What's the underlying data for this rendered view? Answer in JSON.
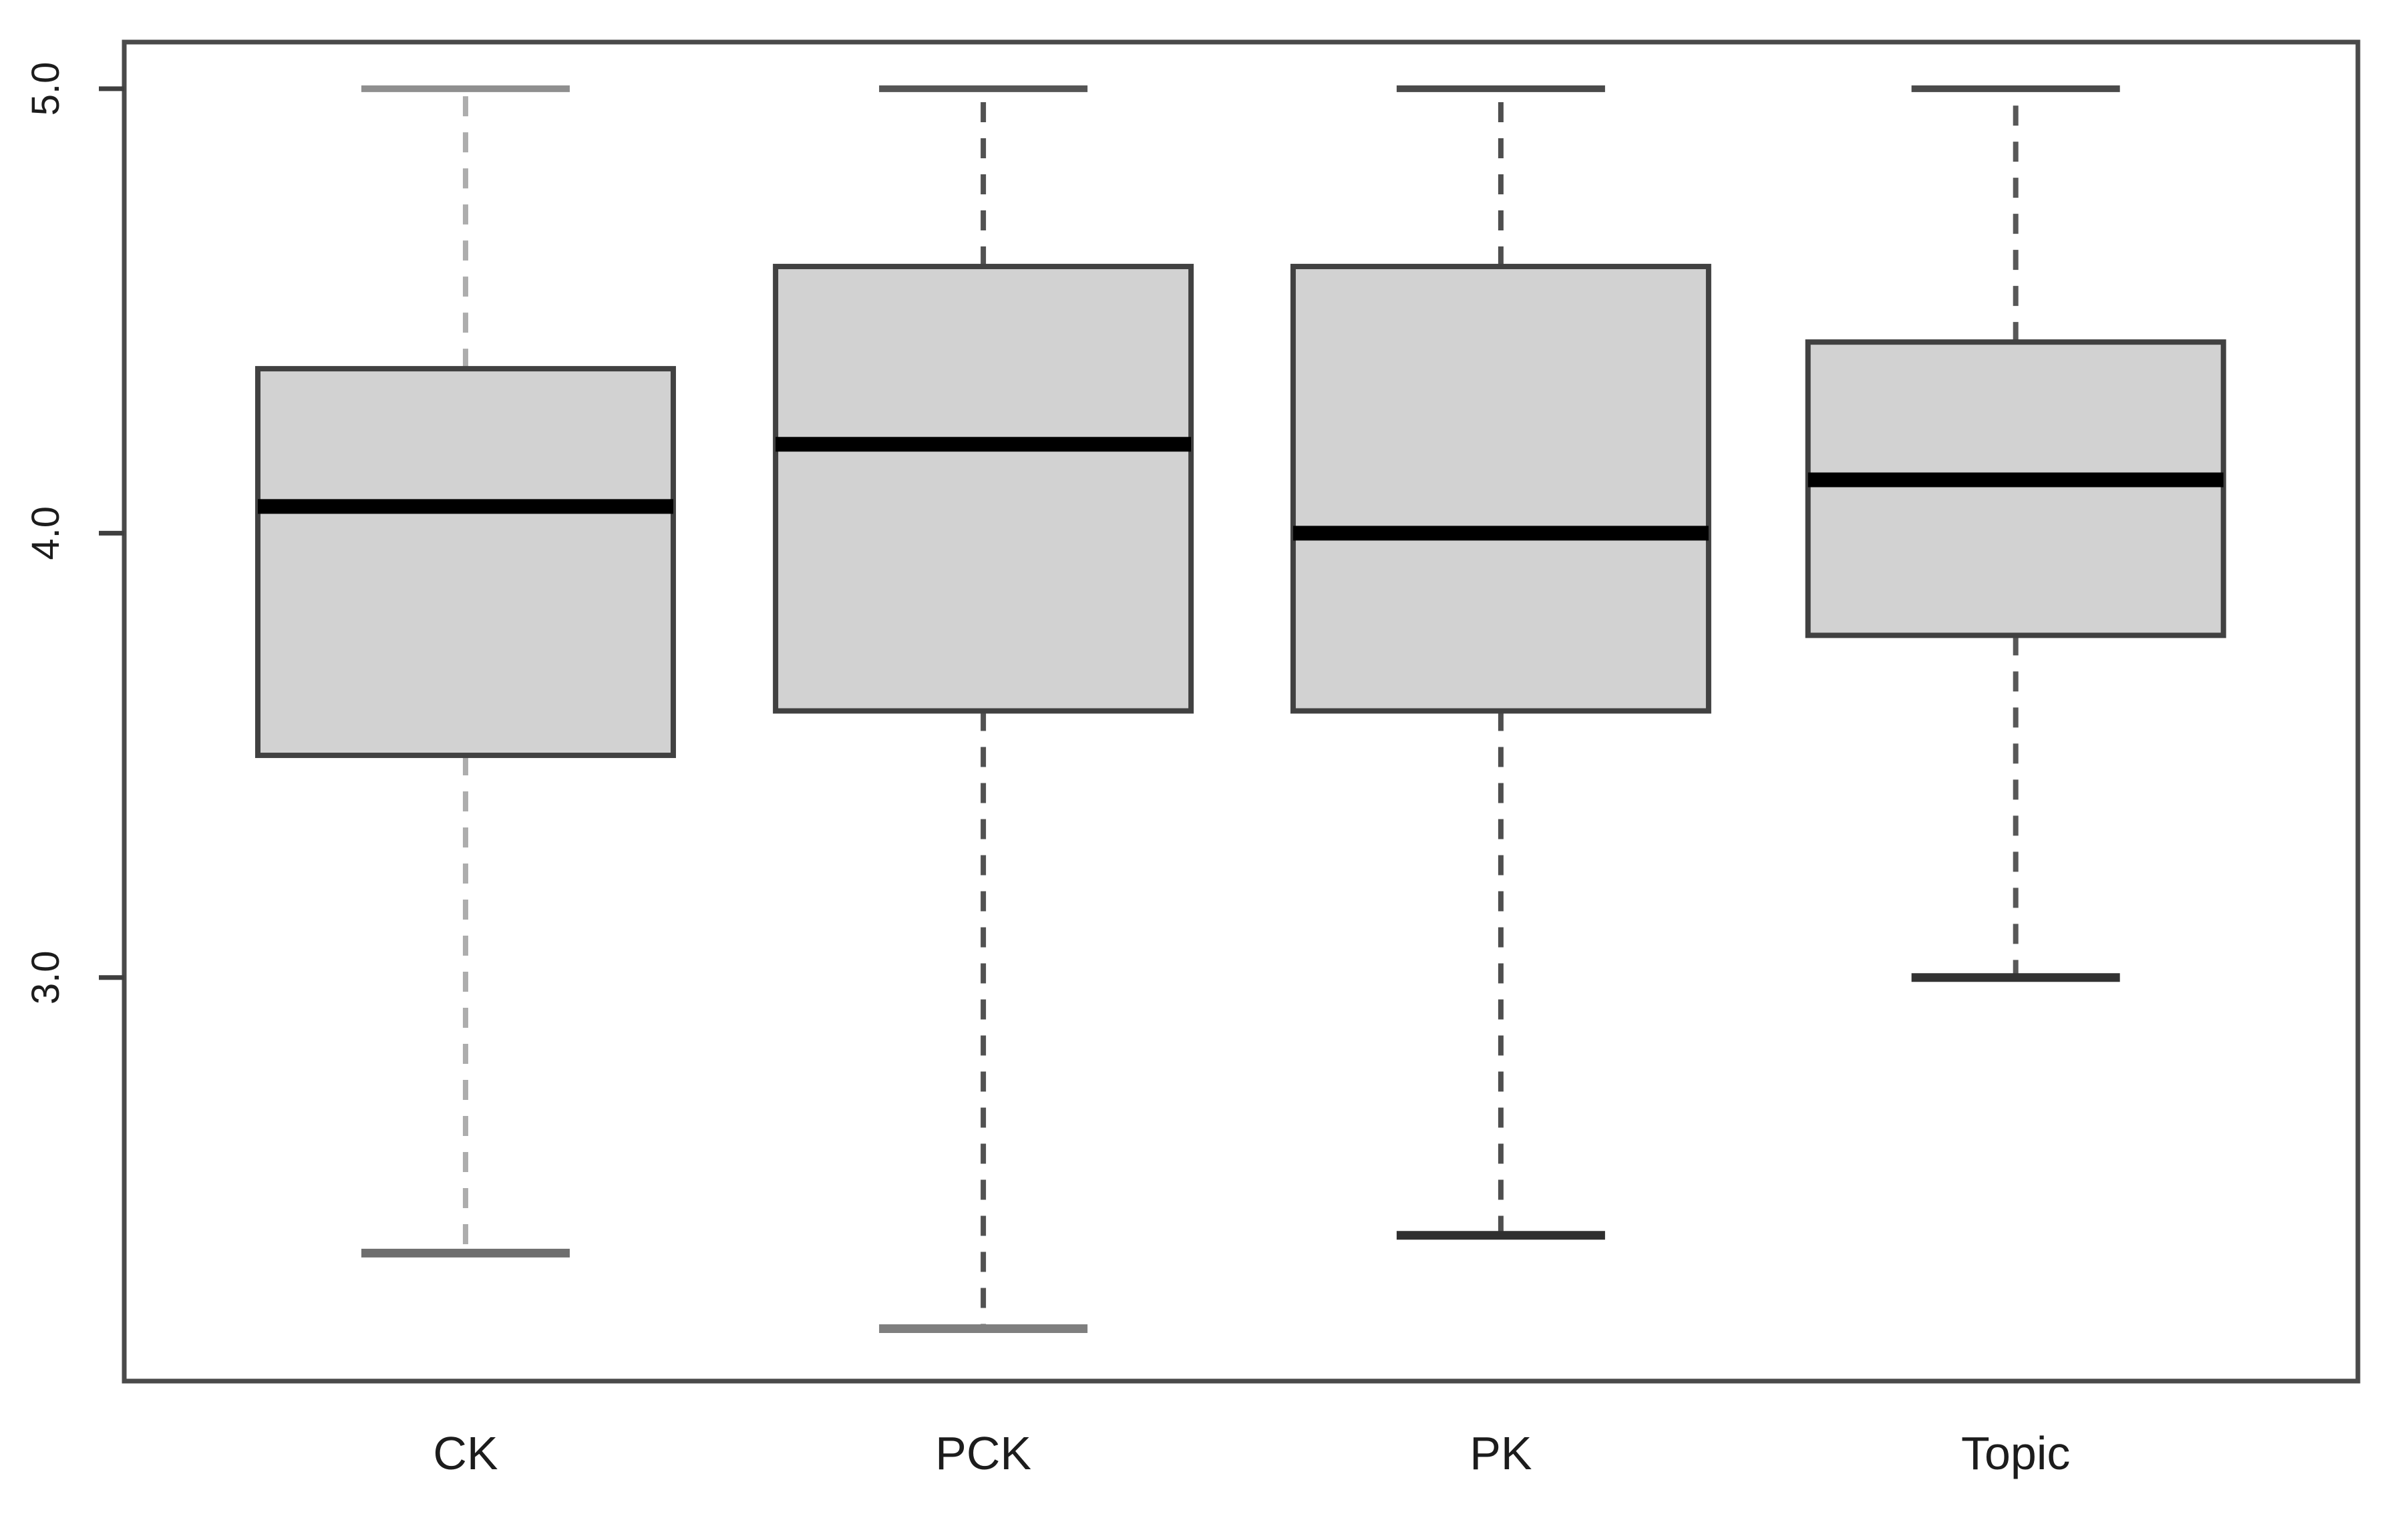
{
  "chart_data": {
    "type": "boxplot",
    "title": "",
    "xlabel": "",
    "ylabel": "",
    "categories": [
      "CK",
      "PCK",
      "PK",
      "Topic"
    ],
    "series": [
      {
        "name": "CK",
        "whisker_low": 2.38,
        "q1": 3.5,
        "median": 4.06,
        "q3": 4.37,
        "whisker_high": 5.0
      },
      {
        "name": "PCK",
        "whisker_low": 2.21,
        "q1": 3.6,
        "median": 4.2,
        "q3": 4.6,
        "whisker_high": 5.0
      },
      {
        "name": "PK",
        "whisker_low": 2.42,
        "q1": 3.6,
        "median": 4.0,
        "q3": 4.6,
        "whisker_high": 5.0
      },
      {
        "name": "Topic",
        "whisker_low": 3.0,
        "q1": 3.77,
        "median": 4.12,
        "q3": 4.43,
        "whisker_high": 5.0
      }
    ],
    "yticks": [
      5.0,
      4.0,
      3.0
    ],
    "ytick_labels": [
      "5.0",
      "4.0",
      "3.0"
    ],
    "ylim": [
      2.092,
      5.105
    ],
    "grid": false,
    "legend": null,
    "styles": {
      "background": "#ffffff",
      "box_fill": "#d2d2d2",
      "box_border": "#414141",
      "median_color": "#000000",
      "axis_color": "#4a4a4a",
      "tick_color": "#3f3f3f",
      "label_color": "#1c1c1c",
      "whisker_colors": [
        "#adadad",
        "#525252",
        "#4f4f4f",
        "#585858"
      ],
      "top_cap_colors": [
        "#8f8f8f",
        "#555555",
        "#4a4a4a",
        "#4a4a4a"
      ],
      "bottom_cap_colors": [
        "#6e6e6e",
        "#7f7f7f",
        "#2f2f2f",
        "#333333"
      ]
    }
  }
}
